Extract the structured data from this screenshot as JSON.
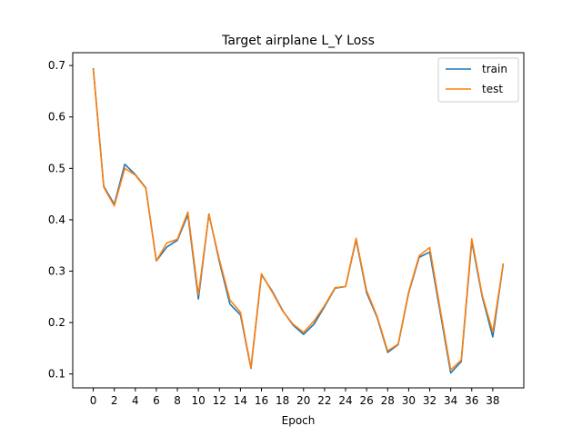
{
  "chart_data": {
    "type": "line",
    "title": "Target airplane L_Y Loss",
    "xlabel": "Epoch",
    "ylabel": "",
    "xlim": [
      -1.95,
      40.95
    ],
    "ylim": [
      0.073,
      0.725
    ],
    "xticks": [
      0,
      2,
      4,
      6,
      8,
      10,
      12,
      14,
      16,
      18,
      20,
      22,
      24,
      26,
      28,
      30,
      32,
      34,
      36,
      38
    ],
    "yticks": [
      0.1,
      0.2,
      0.3,
      0.4,
      0.5,
      0.6,
      0.7
    ],
    "ytick_labels": [
      "0.1",
      "0.2",
      "0.3",
      "0.4",
      "0.5",
      "0.6",
      "0.7"
    ],
    "grid": false,
    "legend_position": "upper right",
    "x": [
      0,
      1,
      2,
      3,
      4,
      5,
      6,
      7,
      8,
      9,
      10,
      11,
      12,
      13,
      14,
      15,
      16,
      17,
      18,
      19,
      20,
      21,
      22,
      23,
      24,
      25,
      26,
      27,
      28,
      29,
      30,
      31,
      32,
      33,
      34,
      35,
      36,
      37,
      38,
      39
    ],
    "series": [
      {
        "name": "train",
        "color": "#1f77b4",
        "values": [
          0.695,
          0.465,
          0.43,
          0.508,
          0.488,
          0.462,
          0.32,
          0.347,
          0.36,
          0.41,
          0.246,
          0.411,
          0.318,
          0.236,
          0.215,
          0.111,
          0.293,
          0.262,
          0.224,
          0.195,
          0.177,
          0.197,
          0.231,
          0.267,
          0.27,
          0.361,
          0.258,
          0.21,
          0.142,
          0.157,
          0.258,
          0.327,
          0.337,
          0.22,
          0.102,
          0.124,
          0.358,
          0.25,
          0.172,
          0.315
        ]
      },
      {
        "name": "test",
        "color": "#ff7f0e",
        "values": [
          0.694,
          0.463,
          0.427,
          0.5,
          0.487,
          0.461,
          0.32,
          0.355,
          0.362,
          0.415,
          0.254,
          0.41,
          0.322,
          0.244,
          0.22,
          0.112,
          0.295,
          0.26,
          0.223,
          0.197,
          0.181,
          0.203,
          0.233,
          0.268,
          0.27,
          0.364,
          0.262,
          0.212,
          0.145,
          0.158,
          0.26,
          0.33,
          0.346,
          0.226,
          0.108,
          0.127,
          0.363,
          0.253,
          0.182,
          0.315
        ]
      }
    ]
  }
}
